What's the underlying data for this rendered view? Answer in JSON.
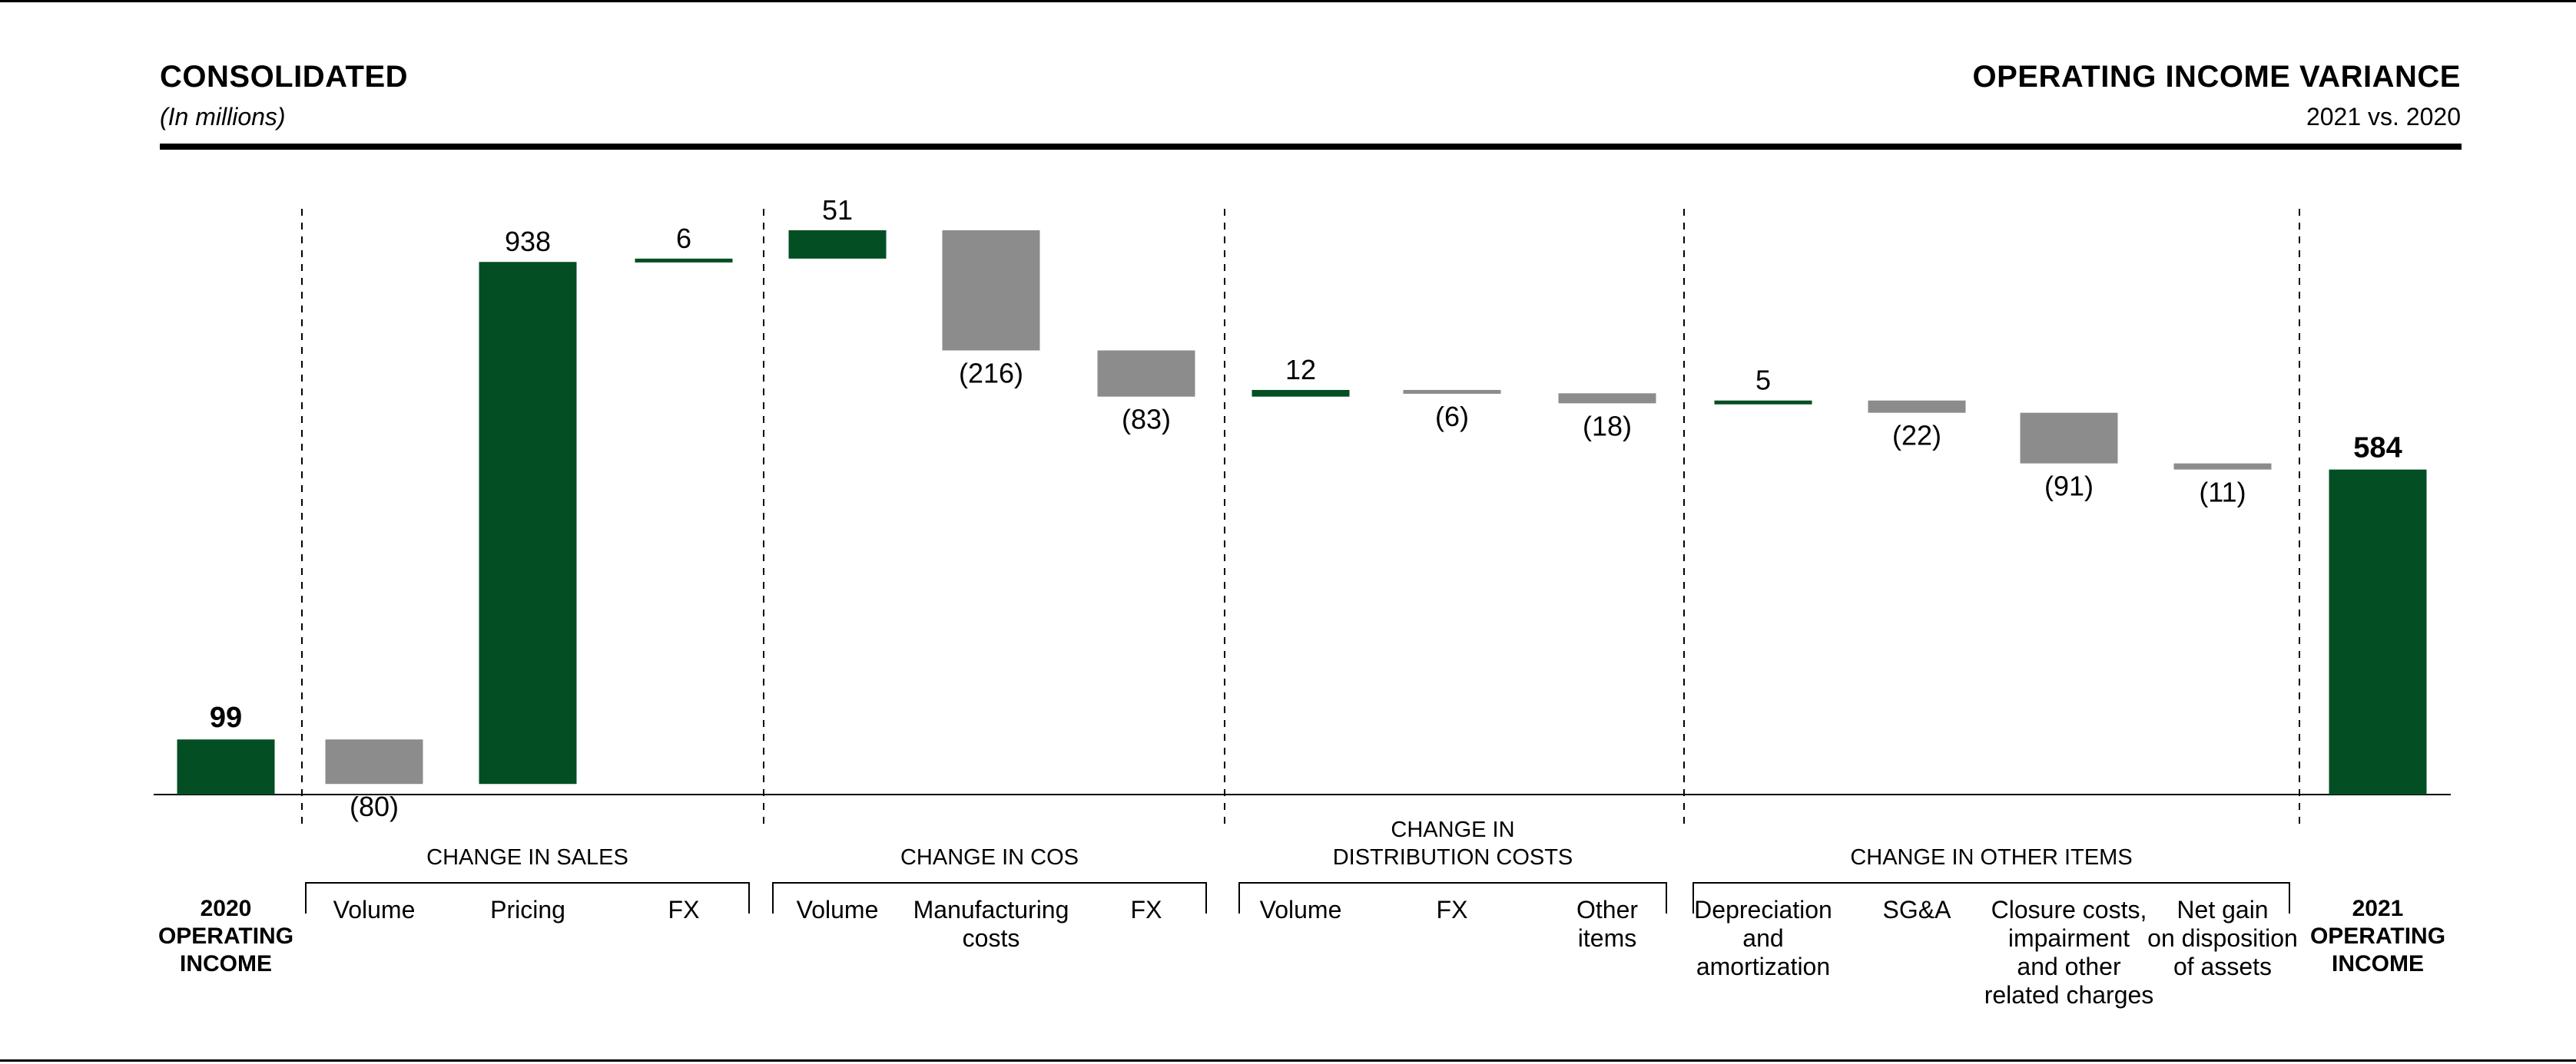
{
  "header": {
    "left_title": "CONSOLIDATED",
    "left_subtitle": "(In millions)",
    "right_title": "OPERATING INCOME VARIANCE",
    "right_subtitle": "2021 vs. 2020"
  },
  "colors": {
    "positive": "#034F23",
    "negative": "#8C8C8C",
    "text": "#000000"
  },
  "chart_data": {
    "type": "bar",
    "subtype": "waterfall",
    "units": "millions",
    "ylim": [
      0,
      938
    ],
    "start": {
      "label_lines": [
        "2020",
        "OPERATING",
        "INCOME"
      ],
      "value": 99,
      "value_label": "99"
    },
    "end": {
      "label_lines": [
        "2021",
        "OPERATING",
        "INCOME"
      ],
      "value": 584,
      "value_label": "584"
    },
    "groups": [
      {
        "title_lines": [
          "CHANGE IN SALES"
        ],
        "items": [
          {
            "label_lines": [
              "Volume"
            ],
            "value": -80,
            "value_label": "(80)"
          },
          {
            "label_lines": [
              "Pricing"
            ],
            "value": 938,
            "value_label": "938"
          },
          {
            "label_lines": [
              "FX"
            ],
            "value": 6,
            "value_label": "6"
          }
        ]
      },
      {
        "title_lines": [
          "CHANGE IN COS"
        ],
        "items": [
          {
            "label_lines": [
              "Volume"
            ],
            "value": 51,
            "value_label": "51"
          },
          {
            "label_lines": [
              "Manufacturing",
              "costs"
            ],
            "value": -216,
            "value_label": "(216)"
          },
          {
            "label_lines": [
              "FX"
            ],
            "value": -83,
            "value_label": "(83)"
          }
        ]
      },
      {
        "title_lines": [
          "CHANGE IN",
          "DISTRIBUTION COSTS"
        ],
        "items": [
          {
            "label_lines": [
              "Volume"
            ],
            "value": 12,
            "value_label": "12"
          },
          {
            "label_lines": [
              "FX"
            ],
            "value": -6,
            "value_label": "(6)"
          },
          {
            "label_lines": [
              "Other",
              "items"
            ],
            "value": -18,
            "value_label": "(18)"
          }
        ]
      },
      {
        "title_lines": [
          "CHANGE IN OTHER ITEMS"
        ],
        "items": [
          {
            "label_lines": [
              "Depreciation",
              "and",
              "amortization"
            ],
            "value": 5,
            "value_label": "5"
          },
          {
            "label_lines": [
              "SG&A"
            ],
            "value": -22,
            "value_label": "(22)"
          },
          {
            "label_lines": [
              "Closure costs,",
              "impairment",
              "and other",
              "related charges"
            ],
            "value": -91,
            "value_label": "(91)"
          },
          {
            "label_lines": [
              "Net gain",
              "on disposition",
              "of assets"
            ],
            "value": -11,
            "value_label": "(11)"
          }
        ]
      }
    ]
  }
}
